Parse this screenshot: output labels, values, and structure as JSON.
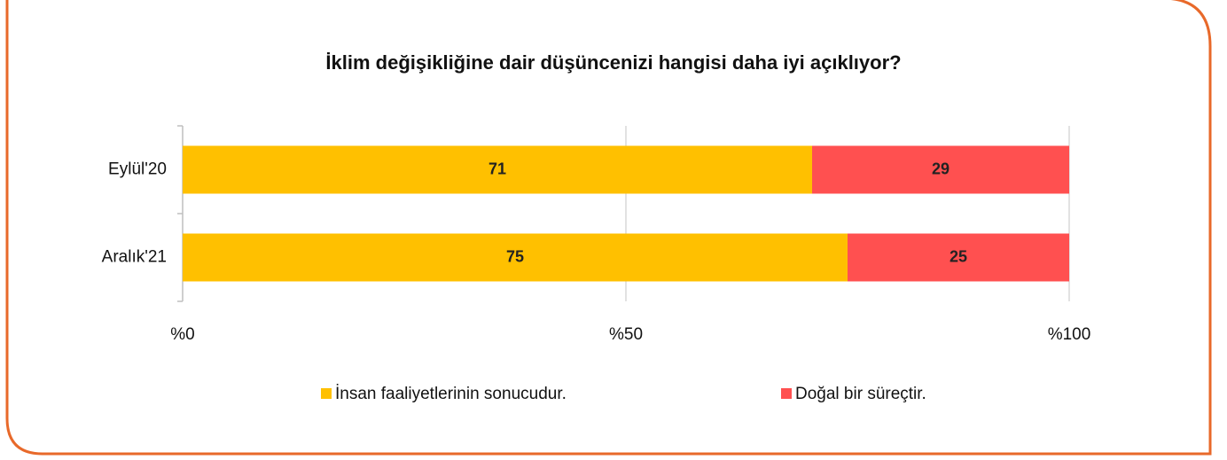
{
  "chart_data": {
    "type": "stacked_barh",
    "title": "İklim değişikliğine dair düşüncenizi hangisi daha iyi açıklıyor?",
    "categories": [
      "Eylül'20",
      "Aralık'21"
    ],
    "series": [
      {
        "name": "İnsan faaliyetlerinin sonucudur.",
        "color": "#ffc000",
        "values": [
          71,
          75
        ]
      },
      {
        "name": "Doğal bir süreçtir.",
        "color": "#ff5050",
        "values": [
          29,
          25
        ]
      }
    ],
    "xlim": [
      0,
      100
    ],
    "xticks": [
      {
        "value": 0,
        "label": "%0"
      },
      {
        "value": 50,
        "label": "%50"
      },
      {
        "value": 100,
        "label": "%100"
      }
    ],
    "grid": true,
    "legend": "bottom"
  }
}
